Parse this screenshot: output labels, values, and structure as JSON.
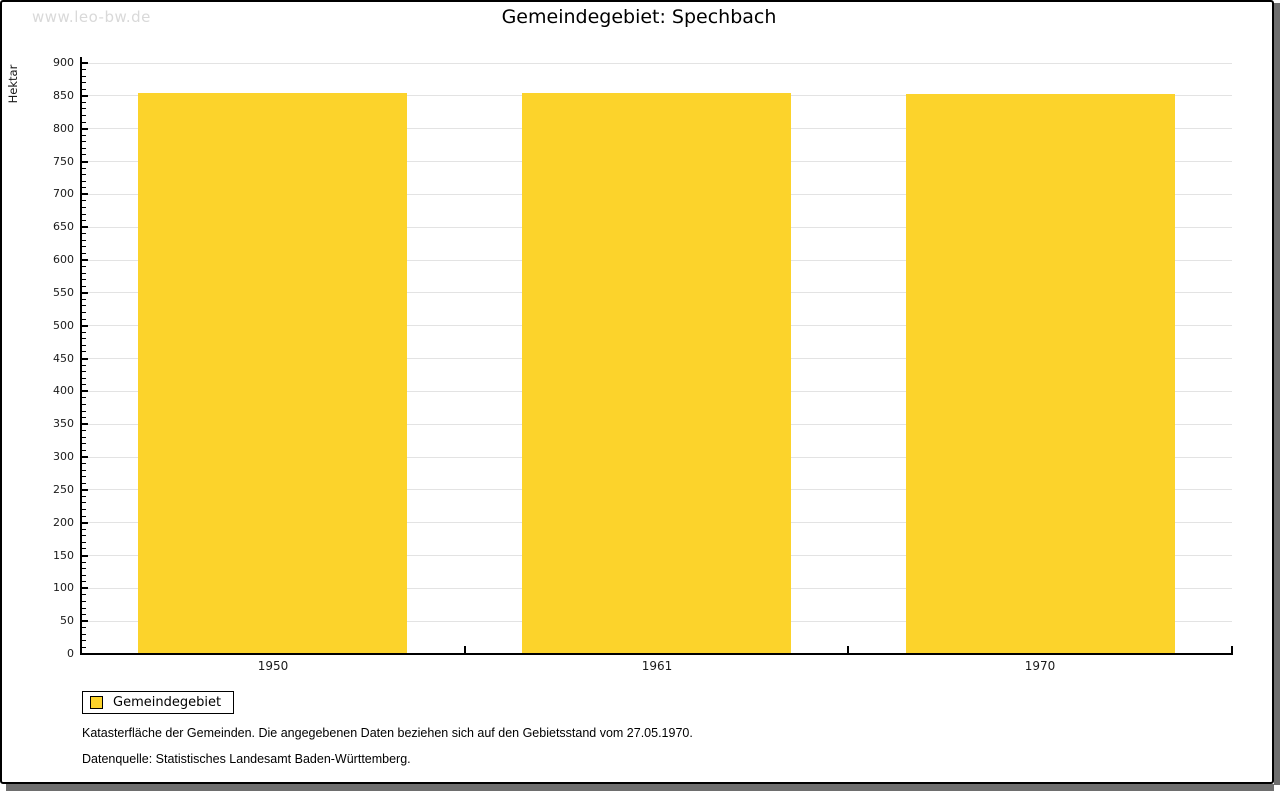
{
  "watermark": "www.leo-bw.de",
  "title": "Gemeindegebiet: Spechbach",
  "chart_data": {
    "type": "bar",
    "title": "Gemeindegebiet: Spechbach",
    "categories": [
      "1950",
      "1961",
      "1970"
    ],
    "series": [
      {
        "name": "Gemeindegebiet",
        "values": [
          854,
          854,
          853
        ]
      }
    ],
    "xlabel": "",
    "ylabel": "Hektar",
    "ylim": [
      0,
      900
    ],
    "y_major_step": 50,
    "y_minor_step": 10,
    "grid": true,
    "legend_position": "bottom-left",
    "bar_color": "#FCD32B"
  },
  "legend": {
    "label": "Gemeindegebiet",
    "swatch_color": "#FCD32B"
  },
  "footnotes": [
    "Katasterfläche der Gemeinden. Die angegebenen Daten beziehen sich auf den Gebietsstand vom 27.05.1970.",
    "Datenquelle: Statistisches Landesamt Baden-Württemberg."
  ],
  "colors": {
    "bar": "#FCD32B",
    "grid": "#E3E3E3",
    "axis": "#000000",
    "watermark": "#D9D9D9",
    "shadow": "#6E6E6E"
  }
}
